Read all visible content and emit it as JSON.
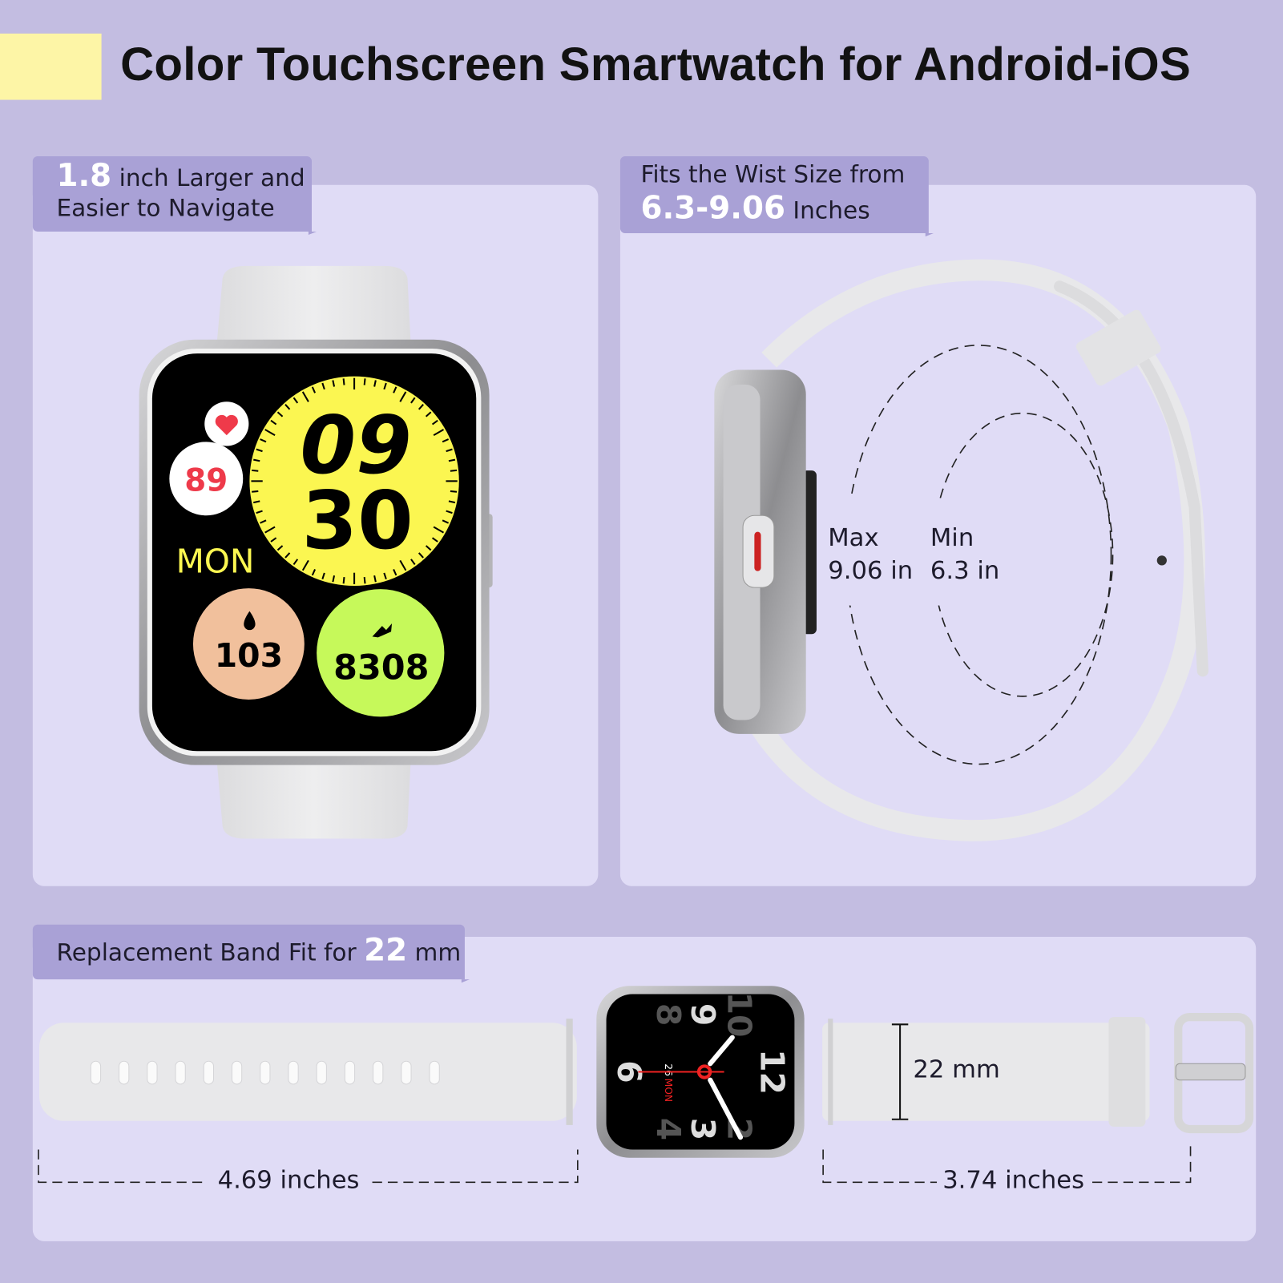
{
  "title": "Color Touchscreen Smartwatch for Android-iOS",
  "colors": {
    "background": "#c3bde1",
    "panel": "#e0dcf6",
    "tab": "#a9a1d6",
    "accent_bar": "#fdf5a6"
  },
  "panel_screen": {
    "tab_highlight": "1.8",
    "tab_line1": " inch  Larger and",
    "tab_line2": "Easier to Navigate",
    "watch": {
      "hour": "09",
      "minute": "30",
      "heart_rate": "89",
      "day": "MON",
      "calories": "103",
      "steps": "8308",
      "icons": [
        "heart-icon",
        "flame-icon",
        "shoe-icon"
      ]
    }
  },
  "panel_wrist": {
    "tab_line1": "Fits the Wist Size from",
    "tab_highlight": "6.3-9.06",
    "tab_unit": " Inches",
    "max_label": "Max",
    "max_value": "9.06 in",
    "min_label": "Min",
    "min_value": "6.3 in"
  },
  "panel_band": {
    "tab_text": "Replacement Band Fit for ",
    "tab_highlight": "22",
    "tab_unit": " mm",
    "long_band_length": "4.69 inches",
    "short_band_length": "3.74 inches",
    "band_width": "22 mm",
    "analog_face": {
      "numerals": [
        "8",
        "9",
        "10",
        "12",
        "6",
        "3",
        "4",
        "2"
      ],
      "date": "26",
      "day": "MON"
    }
  }
}
